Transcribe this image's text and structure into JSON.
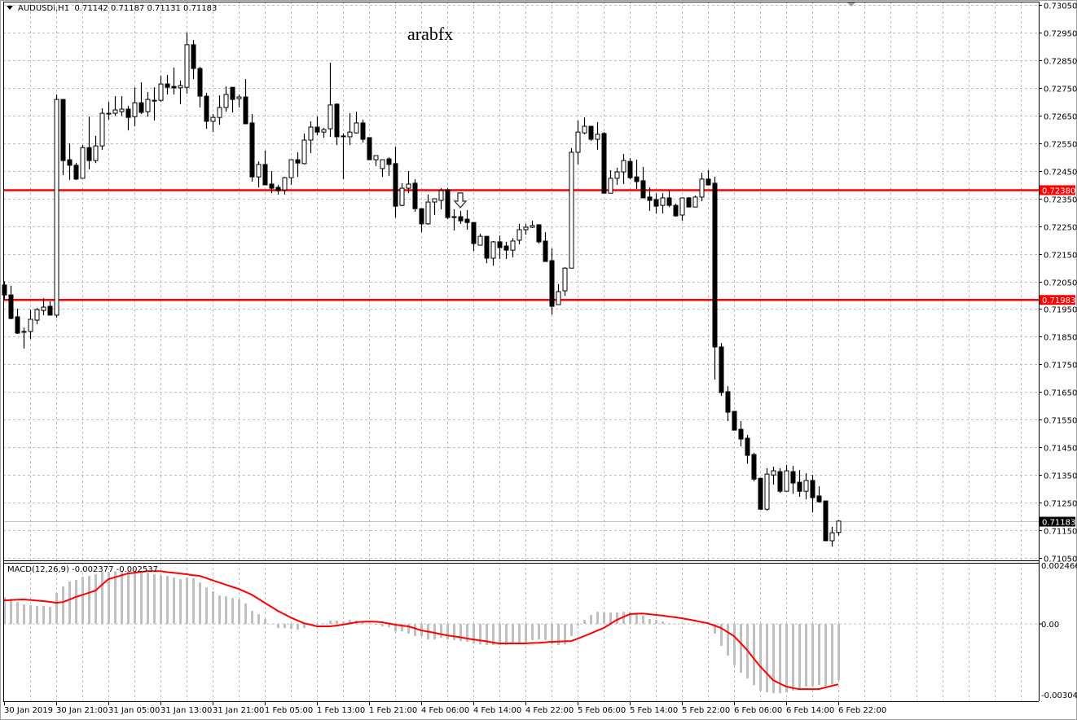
{
  "header": {
    "symbol": "AUDUSDi,H1",
    "ohlc": "0.71142 0.71187 0.71131 0.71183"
  },
  "watermark": "arabfx",
  "macd_label": "MACD(12,26,9) -0.002377 -0.002537",
  "colors": {
    "bull_fill": "#ffffff",
    "bear_fill": "#000000",
    "candle_outline": "#000000",
    "level_line": "#ff0000",
    "grid": "#c0c0c0",
    "macd_hist": "#c0c0c0",
    "macd_signal": "#ff0000",
    "current_price_label": "#000000"
  },
  "icons": {
    "dropdown": "triangle-down-icon",
    "signal_arrow": "arrow-down-icon",
    "chart_shift": "shift-marker-icon"
  },
  "chart_data": [
    {
      "type": "candlestick",
      "symbol": "AUDUSDi",
      "timeframe": "H1",
      "ylim": [
        0.7105,
        0.7305
      ],
      "grid": true,
      "y_tick_labels": [
        "0.73050",
        "0.72950",
        "0.72850",
        "0.72750",
        "0.72650",
        "0.72550",
        "0.72450",
        "0.72350",
        "0.72250",
        "0.72150",
        "0.72050",
        "0.71950",
        "0.71850",
        "0.71750",
        "0.71650",
        "0.71550",
        "0.71450",
        "0.71350",
        "0.71250",
        "0.71150",
        "0.71050"
      ],
      "x_tick_labels": [
        "30 Jan 2019",
        "30 Jan 21:00",
        "31 Jan 05:00",
        "31 Jan 13:00",
        "31 Jan 21:00",
        "1 Feb 05:00",
        "1 Feb 13:00",
        "1 Feb 21:00",
        "4 Feb 06:00",
        "4 Feb 14:00",
        "4 Feb 22:00",
        "5 Feb 06:00",
        "5 Feb 14:00",
        "5 Feb 22:00",
        "6 Feb 06:00",
        "6 Feb 14:00",
        "6 Feb 22:00"
      ],
      "horizontal_levels": [
        {
          "price": 0.7238,
          "label": "0.72380",
          "color": "#ff0000"
        },
        {
          "price": 0.71983,
          "label": "0.71983",
          "color": "#ff0000"
        }
      ],
      "current_price": {
        "price": 0.71183,
        "label": "0.71183"
      },
      "signal_arrow": {
        "type": "down",
        "candle": 70
      },
      "ohlc_columns": [
        "open",
        "high",
        "low",
        "close"
      ],
      "candles": [
        [
          0.72037,
          0.72051,
          0.71984,
          0.72001
        ],
        [
          0.72001,
          0.72034,
          0.71913,
          0.71916
        ],
        [
          0.71922,
          0.71951,
          0.7186,
          0.71863
        ],
        [
          0.71869,
          0.71883,
          0.71807,
          0.71866
        ],
        [
          0.71869,
          0.71948,
          0.71842,
          0.71913
        ],
        [
          0.7191,
          0.71954,
          0.71895,
          0.71948
        ],
        [
          0.71945,
          0.71989,
          0.71928,
          0.71957
        ],
        [
          0.7196,
          0.71978,
          0.71928,
          0.71928
        ],
        [
          0.71928,
          0.72726,
          0.71919,
          0.72708
        ],
        [
          0.72708,
          0.72708,
          0.72434,
          0.72487
        ],
        [
          0.7249,
          0.72549,
          0.72417,
          0.7247
        ],
        [
          0.7247,
          0.72479,
          0.72417,
          0.7242
        ],
        [
          0.72423,
          0.72543,
          0.72423,
          0.72534
        ],
        [
          0.72534,
          0.72646,
          0.72455,
          0.72487
        ],
        [
          0.72487,
          0.72576,
          0.72478,
          0.7254
        ],
        [
          0.7254,
          0.72676,
          0.72526,
          0.72658
        ],
        [
          0.72658,
          0.72699,
          0.72635,
          0.72655
        ],
        [
          0.72658,
          0.7272,
          0.72649,
          0.7267
        ],
        [
          0.72664,
          0.7272,
          0.72649,
          0.72673
        ],
        [
          0.72673,
          0.72685,
          0.72596,
          0.72643
        ],
        [
          0.72646,
          0.72752,
          0.72611,
          0.72696
        ],
        [
          0.72696,
          0.7277,
          0.72655,
          0.72661
        ],
        [
          0.72664,
          0.72735,
          0.72646,
          0.72708
        ],
        [
          0.72705,
          0.72752,
          0.72632,
          0.72702
        ],
        [
          0.72705,
          0.72794,
          0.72699,
          0.72764
        ],
        [
          0.72764,
          0.72797,
          0.72726,
          0.72752
        ],
        [
          0.72755,
          0.72823,
          0.72726,
          0.7275
        ],
        [
          0.7275,
          0.72776,
          0.72691,
          0.72758
        ],
        [
          0.72752,
          0.7295,
          0.72729,
          0.72906
        ],
        [
          0.72906,
          0.72923,
          0.72782,
          0.7282
        ],
        [
          0.7282,
          0.72826,
          0.72679,
          0.7272
        ],
        [
          0.7272,
          0.72732,
          0.72602,
          0.72629
        ],
        [
          0.72629,
          0.72655,
          0.7259,
          0.72643
        ],
        [
          0.72643,
          0.72723,
          0.72617,
          0.72679
        ],
        [
          0.72679,
          0.72755,
          0.72664,
          0.72726
        ],
        [
          0.72752,
          0.72752,
          0.72661,
          0.72708
        ],
        [
          0.72711,
          0.72726,
          0.72679,
          0.72717
        ],
        [
          0.72717,
          0.72782,
          0.7262,
          0.7262
        ],
        [
          0.72623,
          0.72655,
          0.72411,
          0.72428
        ],
        [
          0.72428,
          0.72484,
          0.7239,
          0.72473
        ],
        [
          0.72473,
          0.72523,
          0.72399,
          0.72399
        ],
        [
          0.72402,
          0.72449,
          0.72369,
          0.72387
        ],
        [
          0.7239,
          0.72399,
          0.72364,
          0.72378
        ],
        [
          0.72381,
          0.72428,
          0.72364,
          0.72425
        ],
        [
          0.72425,
          0.7249,
          0.72399,
          0.7249
        ],
        [
          0.7249,
          0.72517,
          0.72428,
          0.72478
        ],
        [
          0.72476,
          0.72585,
          0.72473,
          0.72561
        ],
        [
          0.72561,
          0.72629,
          0.72514,
          0.72608
        ],
        [
          0.72608,
          0.72646,
          0.72579,
          0.7259
        ],
        [
          0.7259,
          0.72605,
          0.7257,
          0.72599
        ],
        [
          0.72602,
          0.72841,
          0.72573,
          0.72688
        ],
        [
          0.72691,
          0.72694,
          0.72543,
          0.72573
        ],
        [
          0.72576,
          0.72585,
          0.7242,
          0.72575
        ],
        [
          0.72573,
          0.72658,
          0.72543,
          0.7259
        ],
        [
          0.72587,
          0.72664,
          0.72585,
          0.72623
        ],
        [
          0.72623,
          0.72635,
          0.72552,
          0.72564
        ],
        [
          0.7257,
          0.7257,
          0.7249,
          0.7249
        ],
        [
          0.7249,
          0.72505,
          0.72467,
          0.72505
        ],
        [
          0.72458,
          0.7249,
          0.72428,
          0.7249
        ],
        [
          0.72493,
          0.72499,
          0.72431,
          0.72473
        ],
        [
          0.72476,
          0.72537,
          0.72281,
          0.72322
        ],
        [
          0.72325,
          0.72405,
          0.72322,
          0.72387
        ],
        [
          0.72387,
          0.72449,
          0.72369,
          0.72402
        ],
        [
          0.72405,
          0.7242,
          0.72302,
          0.72313
        ],
        [
          0.72313,
          0.72313,
          0.72228,
          0.72258
        ],
        [
          0.72258,
          0.72364,
          0.72255,
          0.72337
        ],
        [
          0.72337,
          0.72349,
          0.7229,
          0.72349
        ],
        [
          0.72343,
          0.72387,
          0.72311,
          0.72378
        ],
        [
          0.72381,
          0.72387,
          0.72275,
          0.72281
        ],
        [
          0.72284,
          0.72311,
          0.72234,
          0.72283
        ],
        [
          0.72284,
          0.72305,
          0.72258,
          0.72269
        ],
        [
          0.72275,
          0.72308,
          0.72237,
          0.72263
        ],
        [
          0.72263,
          0.72263,
          0.7216,
          0.72187
        ],
        [
          0.72181,
          0.72222,
          0.72181,
          0.72213
        ],
        [
          0.72213,
          0.72213,
          0.72116,
          0.72134
        ],
        [
          0.72134,
          0.72196,
          0.72107,
          0.72193
        ],
        [
          0.72193,
          0.72216,
          0.72131,
          0.72172
        ],
        [
          0.72178,
          0.72193,
          0.72131,
          0.72163
        ],
        [
          0.72163,
          0.72207,
          0.72137,
          0.72196
        ],
        [
          0.72199,
          0.72258,
          0.72184,
          0.72237
        ],
        [
          0.72237,
          0.72258,
          0.72219,
          0.72246
        ],
        [
          0.72246,
          0.72269,
          0.72243,
          0.72252
        ],
        [
          0.72255,
          0.72255,
          0.72187,
          0.72193
        ],
        [
          0.72196,
          0.72228,
          0.72122,
          0.72122
        ],
        [
          0.72125,
          0.72169,
          0.7193,
          0.7196
        ],
        [
          0.71966,
          0.7204,
          0.71966,
          0.72013
        ],
        [
          0.72016,
          0.72101,
          0.71998,
          0.72098
        ],
        [
          0.72098,
          0.72532,
          0.72098,
          0.72517
        ],
        [
          0.72517,
          0.72632,
          0.72473,
          0.7259
        ],
        [
          0.72587,
          0.72643,
          0.72582,
          0.72611
        ],
        [
          0.72611,
          0.72611,
          0.72558,
          0.72564
        ],
        [
          0.72564,
          0.72626,
          0.72526,
          0.72582
        ],
        [
          0.72585,
          0.7259,
          0.72369,
          0.72369
        ],
        [
          0.72369,
          0.72452,
          0.72369,
          0.72423
        ],
        [
          0.72423,
          0.72461,
          0.72399,
          0.72446
        ],
        [
          0.72446,
          0.72511,
          0.72402,
          0.72487
        ],
        [
          0.72484,
          0.72496,
          0.7242,
          0.72425
        ],
        [
          0.72428,
          0.7249,
          0.72384,
          0.72411
        ],
        [
          0.72414,
          0.72464,
          0.72352,
          0.72352
        ],
        [
          0.72355,
          0.7239,
          0.72305,
          0.72343
        ],
        [
          0.72346,
          0.72369,
          0.72296,
          0.72322
        ],
        [
          0.72325,
          0.72369,
          0.72296,
          0.72352
        ],
        [
          0.72352,
          0.72378,
          0.72319,
          0.72325
        ],
        [
          0.72325,
          0.72331,
          0.72284,
          0.72287
        ],
        [
          0.7229,
          0.72352,
          0.72269,
          0.72352
        ],
        [
          0.72352,
          0.72355,
          0.72319,
          0.72319
        ],
        [
          0.72319,
          0.72361,
          0.72319,
          0.72355
        ],
        [
          0.72355,
          0.72443,
          0.7234,
          0.7242
        ],
        [
          0.7242,
          0.72452,
          0.72396,
          0.72399
        ],
        [
          0.72405,
          0.72428,
          0.71695,
          0.71813
        ],
        [
          0.71813,
          0.71827,
          0.71636,
          0.71648
        ],
        [
          0.71651,
          0.71671,
          0.71545,
          0.71577
        ],
        [
          0.7158,
          0.7158,
          0.71512,
          0.71512
        ],
        [
          0.71515,
          0.71545,
          0.71453,
          0.7148
        ],
        [
          0.71483,
          0.71495,
          0.71391,
          0.71421
        ],
        [
          0.71424,
          0.7143,
          0.71327,
          0.71335
        ],
        [
          0.71338,
          0.71338,
          0.71226,
          0.71226
        ],
        [
          0.71226,
          0.71374,
          0.71221,
          0.71353
        ],
        [
          0.7135,
          0.7138,
          0.71315,
          0.71365
        ],
        [
          0.71362,
          0.71374,
          0.71285,
          0.71291
        ],
        [
          0.71291,
          0.71386,
          0.71291,
          0.71365
        ],
        [
          0.71362,
          0.71383,
          0.71282,
          0.71321
        ],
        [
          0.71324,
          0.71368,
          0.71271,
          0.71291
        ],
        [
          0.71291,
          0.71356,
          0.71262,
          0.7133
        ],
        [
          0.7133,
          0.7135,
          0.71215,
          0.71268
        ],
        [
          0.71274,
          0.71309,
          0.7125,
          0.71253
        ],
        [
          0.71256,
          0.71256,
          0.71112,
          0.71112
        ],
        [
          0.71112,
          0.71162,
          0.71091,
          0.71141
        ],
        [
          0.71142,
          0.71187,
          0.71131,
          0.71183
        ]
      ]
    },
    {
      "type": "bar+line",
      "indicator": "MACD(12,26,9)",
      "ylim": [
        -0.003043,
        0.002466
      ],
      "y_tick_labels": [
        "0.002466",
        "0.00",
        "-0.003043"
      ],
      "macd_histogram": [
        0.00113,
        0.00106,
        0.00092,
        0.00082,
        0.00079,
        0.00075,
        0.00075,
        0.00072,
        0.0013,
        0.00157,
        0.00178,
        0.00185,
        0.00198,
        0.00202,
        0.00209,
        0.00219,
        0.00219,
        0.00222,
        0.00222,
        0.00219,
        0.00222,
        0.00215,
        0.00215,
        0.00209,
        0.00205,
        0.00202,
        0.00195,
        0.00188,
        0.00195,
        0.00192,
        0.00174,
        0.00154,
        0.00137,
        0.0012,
        0.00116,
        0.00109,
        0.00103,
        0.00086,
        0.00055,
        0.00041,
        0.00021,
        0.0,
        -0.00017,
        -0.00017,
        -0.00021,
        -0.00024,
        -0.00017,
        -7e-05,
        -3e-05,
        3e-05,
        0.00014,
        0.00014,
        0.0001,
        0.00017,
        0.00014,
        0.0001,
        3e-05,
        -3e-05,
        -0.0001,
        -0.00014,
        -0.00031,
        -0.00031,
        -0.00041,
        -0.00051,
        -0.00051,
        -0.00065,
        -0.00065,
        -0.00058,
        -0.00065,
        -0.00068,
        -0.00072,
        -0.00075,
        -0.00082,
        -0.00086,
        -0.00089,
        -0.00089,
        -0.00089,
        -0.00089,
        -0.00086,
        -0.00082,
        -0.00079,
        -0.00068,
        -0.00065,
        -0.00068,
        -0.00086,
        -0.00089,
        -0.00086,
        -0.00051,
        -7e-05,
        0.00017,
        0.00038,
        0.00051,
        0.00048,
        0.00048,
        0.00048,
        0.00051,
        0.00051,
        0.00044,
        0.00034,
        0.00021,
        0.00017,
        0.0001,
        3e-05,
        0.0,
        2e-05,
        1e-05,
        1e-05,
        3e-05,
        0.0,
        -0.00041,
        -0.00092,
        -0.00133,
        -0.00174,
        -0.00205,
        -0.00229,
        -0.00257,
        -0.0028,
        -0.00287,
        -0.00291,
        -0.00291,
        -0.00287,
        -0.0028,
        -0.00274,
        -0.00263,
        -0.0026,
        -0.00257,
        -0.0026,
        -0.00253,
        -0.002377
      ],
      "signal": [
        0.00099,
        0.001,
        0.00102,
        0.00103,
        0.00101,
        0.00098,
        0.00096,
        0.00093,
        0.00089,
        0.00092,
        0.00102,
        0.00113,
        0.00122,
        0.00131,
        0.0014,
        0.00164,
        0.00188,
        0.00196,
        0.00204,
        0.00212,
        0.00215,
        0.00219,
        0.00222,
        0.00222,
        0.00222,
        0.00218,
        0.00215,
        0.00212,
        0.00209,
        0.00205,
        0.00202,
        0.00193,
        0.00183,
        0.00174,
        0.00165,
        0.00156,
        0.00147,
        0.00135,
        0.00123,
        0.00106,
        0.00089,
        0.00072,
        0.00055,
        0.00041,
        0.00027,
        0.00015,
        3e-05,
        -3e-05,
        -0.0001,
        -0.0001,
        -0.0001,
        -7e-05,
        -3e-05,
        2e-05,
        7e-05,
        9e-05,
        0.0001,
        9e-05,
        7e-05,
        2e-05,
        -3e-05,
        -7e-05,
        -0.0001,
        -0.00018,
        -0.00027,
        -0.00032,
        -0.00037,
        -0.00043,
        -0.00048,
        -0.00052,
        -0.00056,
        -0.00061,
        -0.00065,
        -0.00069,
        -0.00073,
        -0.00078,
        -0.00082,
        -0.00082,
        -0.00082,
        -0.00082,
        -0.00082,
        -0.0008,
        -0.00079,
        -0.00077,
        -0.00075,
        -0.00074,
        -0.00073,
        -0.00072,
        -0.00062,
        -0.00051,
        -0.0004,
        -0.00028,
        -0.00017,
        0.0,
        0.00017,
        0.00029,
        0.00041,
        0.00043,
        0.00044,
        0.00041,
        0.00038,
        0.00035,
        0.00031,
        0.00028,
        0.00024,
        0.00019,
        0.00014,
        8e-05,
        3e-05,
        -7e-05,
        -0.00017,
        -0.00034,
        -0.00051,
        -0.0008,
        -0.00109,
        -0.00144,
        -0.00178,
        -0.00207,
        -0.00236,
        -0.0025,
        -0.00263,
        -0.00269,
        -0.00274,
        -0.00274,
        -0.00274,
        -0.00274,
        -0.00267,
        -0.0026,
        -0.002537
      ]
    }
  ]
}
